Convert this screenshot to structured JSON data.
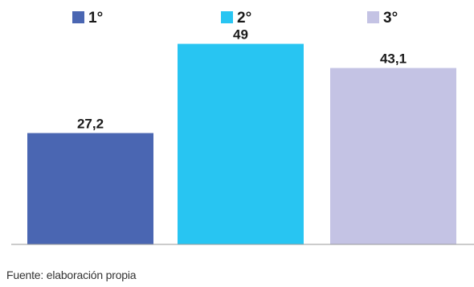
{
  "chart_data": {
    "type": "bar",
    "categories": [
      "1°",
      "2°",
      "3°"
    ],
    "values": [
      27.2,
      49,
      43.1
    ],
    "value_labels": [
      "27,2",
      "49",
      "43,1"
    ],
    "colors": [
      "#4a66b2",
      "#28c5f2",
      "#c4c3e4"
    ],
    "legend": {
      "placement": "top",
      "entries": [
        "1°",
        "2°",
        "3°"
      ]
    },
    "ylim": [
      0,
      55
    ],
    "grid": false,
    "title": "",
    "xlabel": "",
    "ylabel": ""
  },
  "source_text": "Fuente: elaboración propia"
}
